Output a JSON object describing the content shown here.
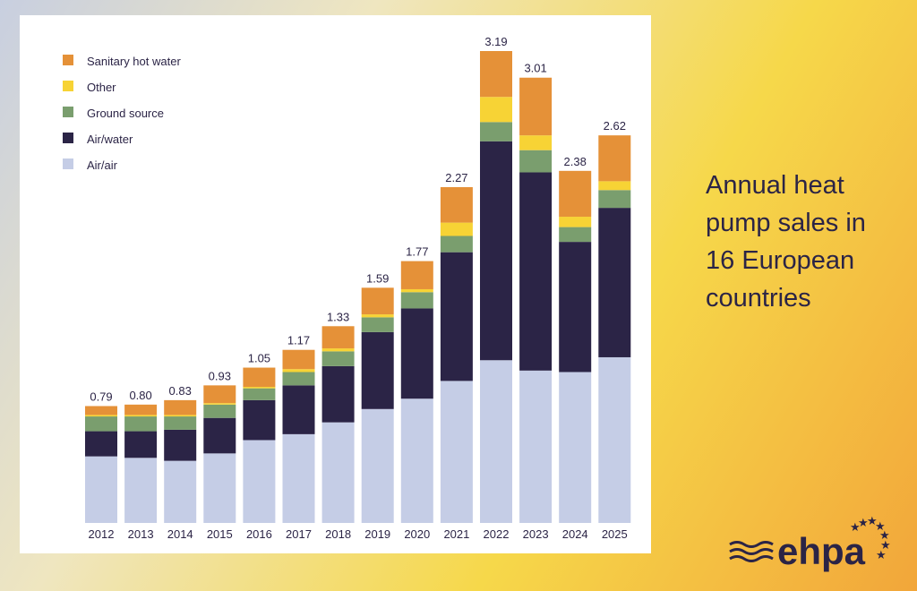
{
  "chart_data": {
    "type": "stacked-bar",
    "title": "Annual heat pump sales in 16 European countries",
    "categories": [
      "2012",
      "2013",
      "2014",
      "2015",
      "2016",
      "2017",
      "2018",
      "2019",
      "2020",
      "2021",
      "2022",
      "2023",
      "2024",
      "2025"
    ],
    "series": [
      {
        "name": "Air/air",
        "color": "#c5cde6",
        "values": [
          0.45,
          0.44,
          0.42,
          0.47,
          0.56,
          0.6,
          0.68,
          0.77,
          0.84,
          0.96,
          1.1,
          1.03,
          1.02,
          1.12
        ]
      },
      {
        "name": "Air/water",
        "color": "#2b2446",
        "values": [
          0.17,
          0.18,
          0.21,
          0.24,
          0.27,
          0.33,
          0.38,
          0.52,
          0.61,
          0.87,
          1.48,
          1.34,
          0.88,
          1.01
        ]
      },
      {
        "name": "Ground source",
        "color": "#7a9e6e",
        "values": [
          0.1,
          0.1,
          0.09,
          0.09,
          0.08,
          0.09,
          0.1,
          0.1,
          0.11,
          0.11,
          0.13,
          0.15,
          0.1,
          0.12
        ]
      },
      {
        "name": "Other",
        "color": "#f7d335",
        "values": [
          0.01,
          0.01,
          0.01,
          0.01,
          0.01,
          0.02,
          0.02,
          0.02,
          0.02,
          0.09,
          0.17,
          0.1,
          0.07,
          0.06
        ]
      },
      {
        "name": "Sanitary hot water",
        "color": "#e59138",
        "values": [
          0.06,
          0.07,
          0.1,
          0.12,
          0.13,
          0.13,
          0.15,
          0.18,
          0.19,
          0.24,
          0.31,
          0.39,
          0.31,
          0.31
        ]
      }
    ],
    "totals": {
      "values": [
        0.79,
        0.8,
        0.83,
        0.93,
        1.05,
        1.17,
        1.33,
        1.59,
        1.77,
        2.27,
        3.19,
        3.01,
        2.38,
        2.62
      ],
      "value_labels": [
        "0.79",
        "0.80",
        "0.83",
        "0.93",
        "1.05",
        "1.17",
        "1.33",
        "1.59",
        "1.77",
        "2.27",
        "3.19",
        "3.01",
        "2.38",
        "2.62"
      ]
    },
    "logo": "ehpa"
  }
}
